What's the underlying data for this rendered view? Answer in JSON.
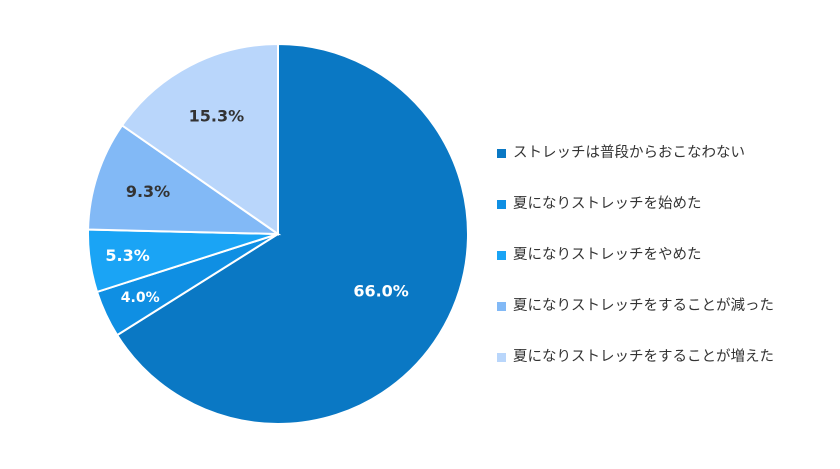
{
  "chart_data": {
    "type": "pie",
    "title": "",
    "categories": [
      "ストレッチは普段からおこなわない",
      "夏になりストレッチを始めた",
      "夏になりストレッチをやめた",
      "夏になりストレッチをすることが減った",
      "夏になりストレッチをすることが増えた"
    ],
    "values": [
      66.0,
      4.0,
      5.3,
      9.3,
      15.3
    ],
    "data_labels": [
      "66.0%",
      "4.0%",
      "5.3%",
      "9.3%",
      "15.3%"
    ],
    "colors": [
      "#0a78c4",
      "#0f8fe3",
      "#1aa4f5",
      "#82b9f6",
      "#b9d6fb"
    ],
    "label_colors": [
      "#ffffff",
      "#ffffff",
      "#ffffff",
      "#333333",
      "#333333"
    ],
    "start_angle_deg": 0,
    "direction": "clockwise",
    "legend_position": "right"
  }
}
